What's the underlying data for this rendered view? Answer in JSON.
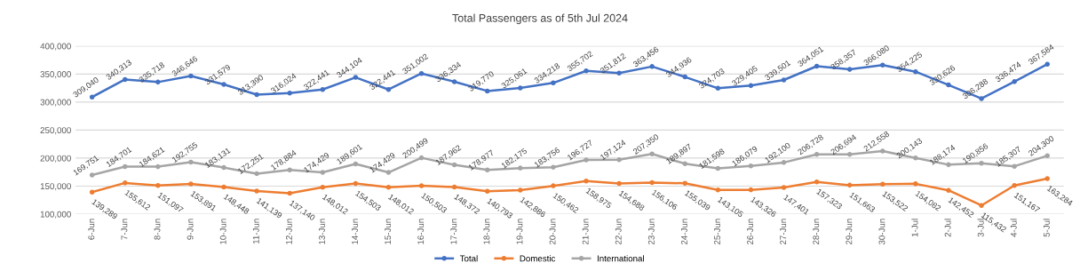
{
  "chart_data": {
    "type": "line",
    "title": "Total Passengers as of 5th Jul 2024",
    "categories": [
      "6-Jun",
      "7-Jun",
      "8-Jun",
      "9-Jun",
      "10-Jun",
      "11-Jun",
      "12-Jun",
      "13-Jun",
      "14-Jun",
      "15-Jun",
      "16-Jun",
      "17-Jun",
      "18-Jun",
      "19-Jun",
      "20-Jun",
      "21-Jun",
      "22-Jun",
      "23-Jun",
      "24-Jun",
      "25-Jun",
      "26-Jun",
      "27-Jun",
      "28-Jun",
      "29-Jun",
      "30-Jun",
      "1-Jul",
      "2-Jul",
      "3-Jul",
      "4-Jul",
      "5-Jul"
    ],
    "series": [
      {
        "name": "Total",
        "color": "#4472c4",
        "values": [
          309040,
          340313,
          335718,
          346646,
          331579,
          313390,
          316024,
          322441,
          344104,
          322441,
          351002,
          336334,
          319770,
          325061,
          334218,
          355702,
          351812,
          363456,
          344936,
          324703,
          329405,
          339501,
          364051,
          358357,
          366080,
          354225,
          330626,
          306288,
          336474,
          367584
        ],
        "value_labels": [
          "309,040",
          "340,313",
          "335,718",
          "346,646",
          "331,579",
          "313,390",
          "316,024",
          "322,441",
          "344,104",
          "322,441",
          "351,002",
          "336,334",
          "319,770",
          "325,061",
          "334,218",
          "355,702",
          "351,812",
          "363,456",
          "344,936",
          "324,703",
          "329,405",
          "339,501",
          "364,051",
          "358,357",
          "366,080",
          "354,225",
          "330,626",
          "306,288",
          "336,474",
          "367,584"
        ]
      },
      {
        "name": "Domestic",
        "color": "#ed7d31",
        "values": [
          139289,
          155612,
          151097,
          153891,
          148448,
          141139,
          137140,
          148012,
          154503,
          148012,
          150503,
          148372,
          140793,
          142886,
          150462,
          158975,
          154688,
          156106,
          155039,
          143105,
          143326,
          147401,
          157323,
          151663,
          153522,
          154082,
          142452,
          115432,
          151167,
          163284
        ],
        "value_labels": [
          "139,289",
          "155,612",
          "151,097",
          "153,891",
          "148,448",
          "141,139",
          "137,140",
          "148,012",
          "154,503",
          "148,012",
          "150,503",
          "148,372",
          "140,793",
          "142,886",
          "150,462",
          "158,975",
          "154,688",
          "156,106",
          "155,039",
          "143,105",
          "143,326",
          "147,401",
          "157,323",
          "151,663",
          "153,522",
          "154,082",
          "142,452",
          "115,432",
          "151,167",
          "163,284"
        ]
      },
      {
        "name": "International",
        "color": "#a5a5a5",
        "values": [
          169751,
          184701,
          184621,
          192755,
          183131,
          172251,
          178884,
          174429,
          189601,
          174429,
          200499,
          187962,
          178977,
          182175,
          183756,
          196727,
          197124,
          207350,
          189897,
          181598,
          186079,
          192100,
          206728,
          206694,
          212558,
          200143,
          188174,
          190856,
          185307,
          204300
        ],
        "value_labels": [
          "169,751",
          "184,701",
          "184,621",
          "192,755",
          "183,131",
          "172,251",
          "178,884",
          "174,429",
          "189,601",
          "174,429",
          "200,499",
          "187,962",
          "178,977",
          "182,175",
          "183,756",
          "196,727",
          "197,124",
          "207,350",
          "189,897",
          "181,598",
          "186,079",
          "192,100",
          "206,728",
          "206,694",
          "212,558",
          "200,143",
          "188,174",
          "190,856",
          "185,307",
          "204,300"
        ]
      }
    ],
    "ylim": [
      100000,
      400000
    ],
    "yticks": [
      {
        "value": 100000,
        "label": "100,000"
      },
      {
        "value": 150000,
        "label": "150,000"
      },
      {
        "value": 200000,
        "label": "200,000"
      },
      {
        "value": 250000,
        "label": "250,000"
      },
      {
        "value": 300000,
        "label": "300,000"
      },
      {
        "value": 350000,
        "label": "350,000"
      },
      {
        "value": 400000,
        "label": "400,000"
      }
    ],
    "grid": "y",
    "legend": "bottom",
    "marker": "circle",
    "line_style": "solid"
  }
}
